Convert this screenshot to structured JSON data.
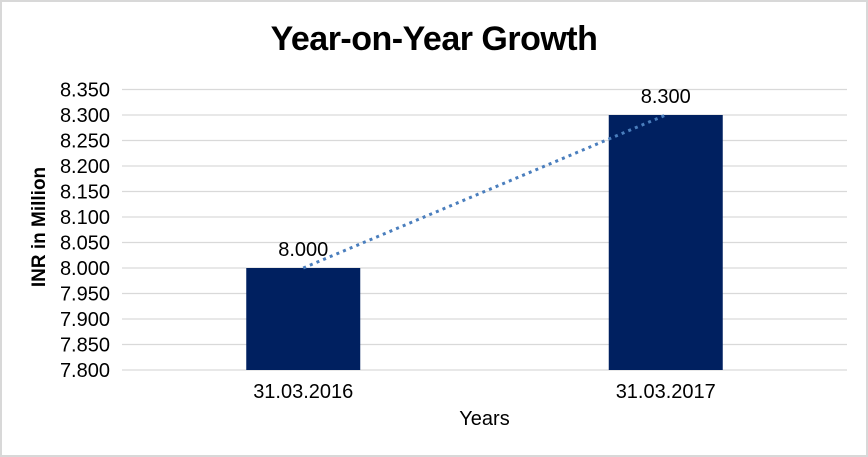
{
  "chart_data": {
    "type": "bar",
    "title": "Year-on-Year Growth",
    "xlabel": "Years",
    "ylabel": "INR in Million",
    "categories": [
      "31.03.2016",
      "31.03.2017"
    ],
    "values": [
      8.0,
      8.3
    ],
    "value_labels": [
      "8.000",
      "8.300"
    ],
    "ylim": [
      7.8,
      8.35
    ],
    "ytick_interval": 0.05,
    "ytick_labels": [
      "7.800",
      "7.850",
      "7.900",
      "7.950",
      "8.000",
      "8.050",
      "8.100",
      "8.150",
      "8.200",
      "8.250",
      "8.300",
      "8.350"
    ],
    "grid": true,
    "legend_position": "none",
    "trendline": {
      "type": "linear",
      "style": "dotted",
      "color": "#4A7EBD",
      "connects": "bar tops"
    },
    "colors": {
      "bar": "#002060",
      "gridline": "#D9D9D9",
      "text": "#000000",
      "frame_border": "#D8D8D8",
      "background": "#FFFFFF"
    }
  }
}
